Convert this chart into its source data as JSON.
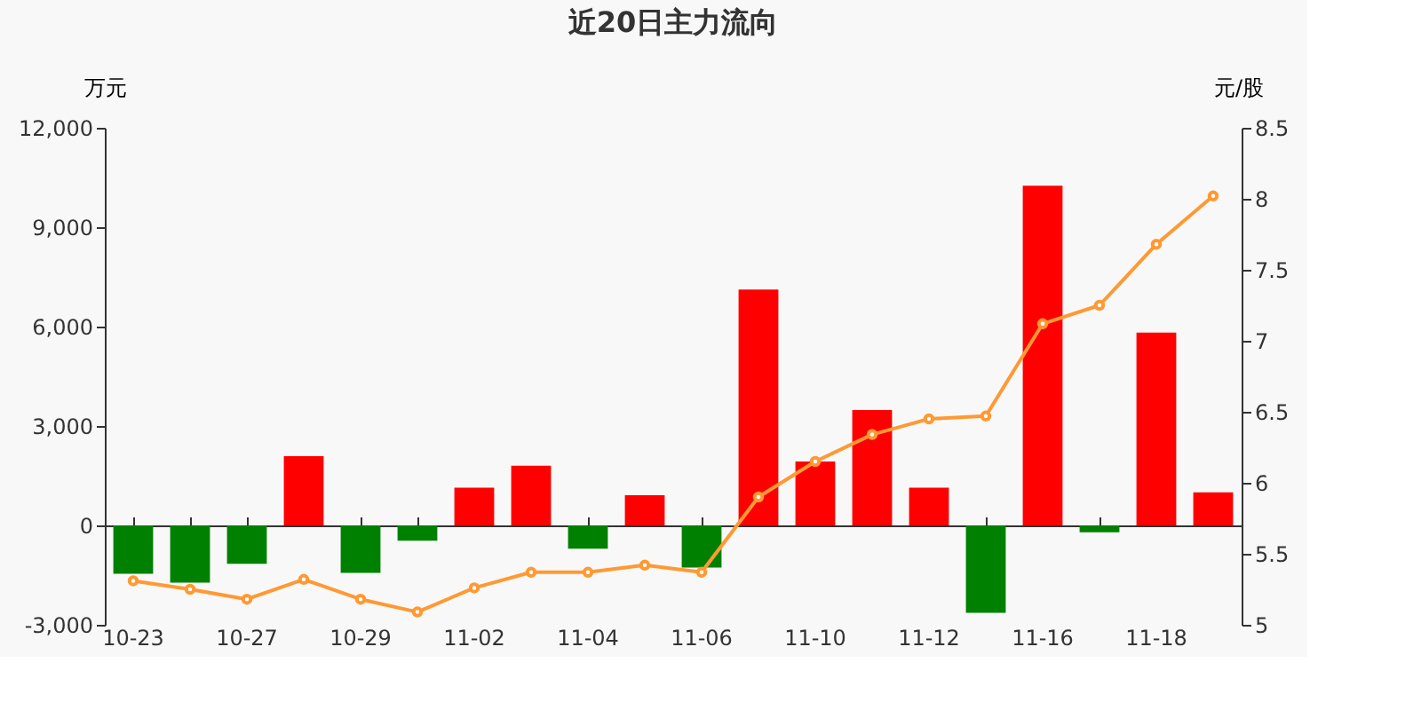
{
  "chart_data": {
    "type": "bar",
    "title": "近20日主力流向",
    "ylabel": "万元",
    "y2label": "元/股",
    "categories": [
      "10-23",
      null,
      "10-27",
      null,
      "10-29",
      null,
      "11-02",
      null,
      "11-04",
      null,
      "11-06",
      null,
      "11-10",
      null,
      "11-12",
      null,
      "11-16",
      null,
      "11-18",
      null
    ],
    "series": [
      {
        "values": [
          -1460,
          -1730,
          -1160,
          2090,
          -1430,
          -460,
          1140,
          1800,
          -700,
          910,
          -1270,
          7120,
          1930,
          3480,
          1140,
          -2640,
          10250,
          -210,
          5820,
          1000
        ],
        "colors": [
          "#008000",
          "#008000",
          "#008000",
          "#ff0000",
          "#008000",
          "#008000",
          "#ff0000",
          "#ff0000",
          "#008000",
          "#ff0000",
          "#008000",
          "#ff0000",
          "#ff0000",
          "#ff0000",
          "#ff0000",
          "#008000",
          "#ff0000",
          "#008000",
          "#ff0000",
          "#ff0000"
        ]
      },
      {
        "type": "line",
        "axis": "y2",
        "color": "#ff9933",
        "marker": "circle",
        "values": [
          5.31,
          5.25,
          5.18,
          5.32,
          5.18,
          5.09,
          5.26,
          5.37,
          5.37,
          5.42,
          5.37,
          5.9,
          6.15,
          6.34,
          6.45,
          6.47,
          7.12,
          7.25,
          7.68,
          8.02
        ]
      }
    ],
    "ylim": [
      -3000,
      12000
    ],
    "yticks": [
      {
        "value": -3000,
        "label": "-3,000"
      },
      0,
      {
        "value": 3000,
        "label": "3,000"
      },
      {
        "value": 6000,
        "label": "6,000"
      },
      {
        "value": 9000,
        "label": "9,000"
      },
      {
        "value": 12000,
        "label": "12,000"
      }
    ],
    "y2lim": [
      5,
      8.5
    ],
    "y2ticks": [
      5,
      5.5,
      6,
      6.5,
      7,
      7.5,
      8,
      8.5
    ]
  }
}
